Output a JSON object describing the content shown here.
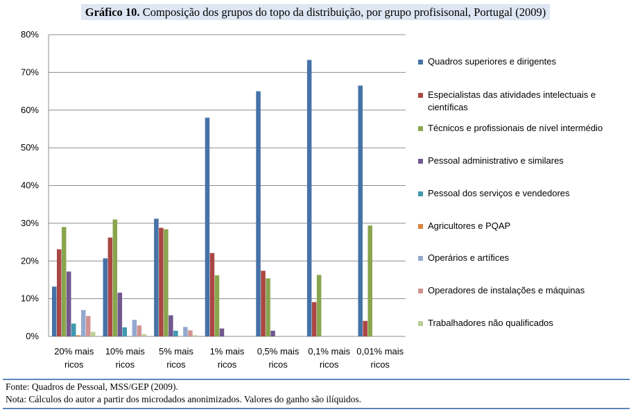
{
  "title_bold": "Gráfico 10.",
  "title_rest": " Composição dos grupos do topo da distribuição, por grupo profisisonal, Portugal (2009)",
  "footer": {
    "source": "Fonte: Quadros de Pessoal, MSS/GEP (2009).",
    "note": "Nota: Cálculos do autor a partir dos microdados anonimizados. Valores do ganho são ilíquidos."
  },
  "chart_data": {
    "type": "bar",
    "title": "Composição dos grupos do topo da distribuição, por grupo profisisonal, Portugal (2009)",
    "ylim": [
      0,
      80
    ],
    "yticks": [
      "0%",
      "10%",
      "20%",
      "30%",
      "40%",
      "50%",
      "60%",
      "70%",
      "80%"
    ],
    "categories": [
      [
        "20% mais",
        "ricos"
      ],
      [
        "10% mais",
        "ricos"
      ],
      [
        "5% mais",
        "ricos"
      ],
      [
        "1% mais",
        "ricos"
      ],
      [
        "0,5% mais",
        "ricos"
      ],
      [
        "0,1% mais",
        "ricos"
      ],
      [
        "0,01% mais",
        "ricos"
      ]
    ],
    "legend_placement": "right",
    "series": [
      {
        "name": "Quadros superiores e dirigentes",
        "color": "#4572a7",
        "values": [
          13.2,
          20.7,
          31.2,
          58.0,
          65.0,
          73.3,
          66.5
        ]
      },
      {
        "name": "Especialistas das atividades intelectuais e científicas",
        "color": "#aa4643",
        "values": [
          23.1,
          26.2,
          28.8,
          22.1,
          17.4,
          9.1,
          4.1
        ]
      },
      {
        "name": "Técnicos e profissionais de nível intermédio",
        "color": "#89a54e",
        "values": [
          29.0,
          31.0,
          28.4,
          16.2,
          15.4,
          16.3,
          29.4
        ]
      },
      {
        "name": "Pessoal administrativo e similares",
        "color": "#71588f",
        "values": [
          17.2,
          11.6,
          5.6,
          2.1,
          1.5,
          0,
          0
        ]
      },
      {
        "name": "Pessoal dos serviços e vendedores",
        "color": "#4198af",
        "values": [
          3.4,
          2.4,
          1.5,
          0,
          0,
          0,
          0
        ]
      },
      {
        "name": "Agricultores e PQAP",
        "color": "#db843d",
        "values": [
          0.3,
          0,
          0,
          0,
          0,
          0,
          0
        ]
      },
      {
        "name": "Operários e artífices",
        "color": "#93a9cf",
        "values": [
          7.0,
          4.4,
          2.5,
          0,
          0,
          0,
          0
        ]
      },
      {
        "name": "Operadores de instalações e máquinas",
        "color": "#d19392",
        "values": [
          5.4,
          2.9,
          1.6,
          0,
          0,
          0,
          0
        ]
      },
      {
        "name": "Trabalhadores não qualificados",
        "color": "#b9cd96",
        "values": [
          1.2,
          0.6,
          0.3,
          0,
          0,
          0,
          0
        ]
      }
    ]
  }
}
